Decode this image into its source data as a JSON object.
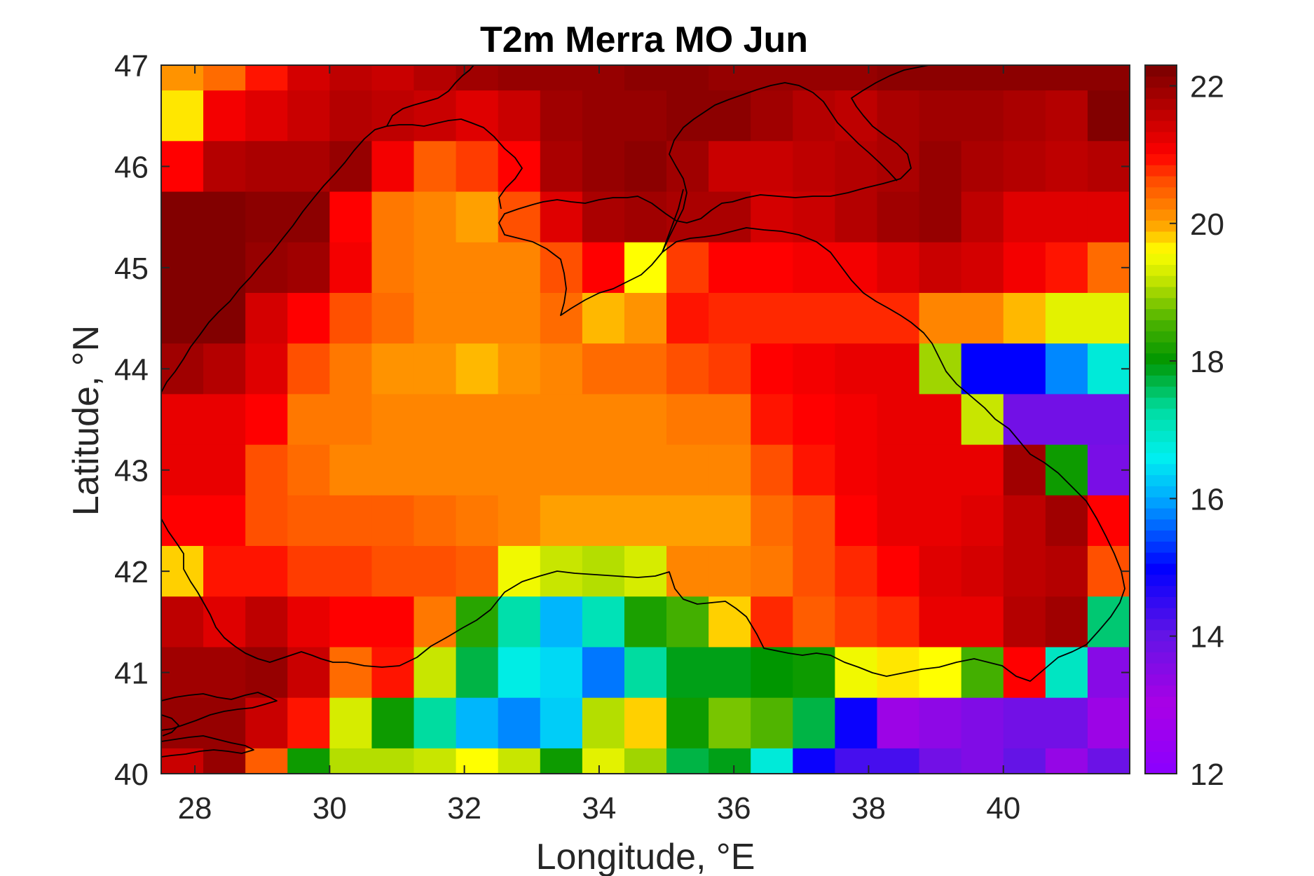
{
  "chart_data": {
    "type": "heatmap",
    "title": "T2m Merra MO Jun",
    "xlabel": "Longitude, °E",
    "ylabel": "Latitude, °N",
    "xlim": [
      27.5,
      41.875
    ],
    "ylim": [
      40,
      47
    ],
    "xticks": [
      28,
      30,
      32,
      34,
      36,
      38,
      40
    ],
    "yticks": [
      40,
      41,
      42,
      43,
      44,
      45,
      46,
      47
    ],
    "colorbar": {
      "range": [
        12,
        22.3
      ],
      "ticks": [
        12,
        14,
        16,
        18,
        20,
        22
      ],
      "colormap": "jet-like with purple low end and dark red high end"
    },
    "grid": "off",
    "legend": "colorbar right",
    "cell_lon_step": 0.625,
    "cell_lat_step": 0.5,
    "lon_start": 27.5,
    "lat_top": 47,
    "first_row_height_deg": 0.25,
    "rows_north_to_south": [
      [
        20.1,
        20.4,
        20.9,
        21.4,
        21.6,
        21.5,
        21.7,
        21.9,
        22.0,
        22.0,
        22.0,
        22.1,
        22.1,
        22.0,
        22.0,
        22.0,
        22.0,
        22.1,
        22.1,
        22.1,
        22.1,
        22.1,
        22.1
      ],
      [
        19.7,
        21.1,
        21.3,
        21.5,
        21.7,
        21.6,
        21.5,
        21.3,
        21.5,
        21.9,
        22.0,
        22.0,
        22.1,
        22.1,
        21.9,
        21.7,
        21.6,
        21.8,
        21.9,
        21.9,
        21.8,
        21.7,
        22.2
      ],
      [
        21.0,
        21.7,
        21.8,
        21.8,
        22.0,
        21.1,
        20.5,
        20.7,
        21.0,
        21.8,
        22.0,
        22.1,
        21.9,
        21.5,
        21.5,
        21.6,
        21.7,
        21.8,
        22.0,
        21.8,
        21.7,
        21.6,
        21.7
      ],
      [
        22.2,
        22.2,
        22.1,
        22.1,
        21.0,
        20.3,
        20.2,
        20.0,
        20.6,
        21.3,
        21.8,
        21.9,
        21.8,
        21.8,
        21.4,
        21.5,
        21.7,
        21.9,
        22.0,
        21.6,
        21.3,
        21.3,
        21.3
      ],
      [
        22.2,
        22.2,
        22.0,
        21.9,
        21.1,
        20.3,
        20.2,
        20.2,
        20.2,
        20.6,
        21.0,
        19.6,
        20.7,
        21.0,
        21.0,
        21.1,
        21.1,
        21.3,
        21.5,
        21.4,
        21.1,
        20.9,
        20.4
      ],
      [
        22.2,
        22.2,
        21.4,
        21.0,
        20.6,
        20.4,
        20.2,
        20.2,
        20.2,
        20.4,
        19.9,
        20.1,
        20.9,
        20.8,
        20.8,
        20.8,
        20.8,
        20.8,
        20.2,
        20.2,
        19.9,
        19.4,
        19.4
      ],
      [
        21.9,
        21.7,
        21.3,
        20.6,
        20.3,
        20.1,
        20.1,
        19.9,
        20.1,
        20.2,
        20.4,
        20.4,
        20.6,
        20.7,
        21.0,
        21.1,
        21.2,
        21.2,
        19.0,
        15.0,
        15.0,
        15.8,
        16.8
      ],
      [
        21.2,
        21.2,
        21.0,
        20.3,
        20.3,
        20.2,
        20.2,
        20.2,
        20.2,
        20.2,
        20.2,
        20.2,
        20.3,
        20.3,
        20.9,
        21.0,
        21.1,
        21.2,
        21.2,
        19.2,
        13.8,
        13.8,
        13.8
      ],
      [
        21.2,
        21.2,
        20.6,
        20.4,
        20.2,
        20.2,
        20.2,
        20.2,
        20.2,
        20.2,
        20.2,
        20.2,
        20.2,
        20.2,
        20.6,
        20.9,
        21.1,
        21.2,
        21.2,
        21.2,
        21.9,
        18.1,
        13.7
      ],
      [
        21.0,
        21.0,
        20.6,
        20.5,
        20.5,
        20.5,
        20.4,
        20.3,
        20.2,
        20.0,
        20.0,
        20.0,
        20.0,
        20.0,
        20.4,
        20.6,
        21.0,
        21.2,
        21.2,
        21.3,
        21.6,
        21.9,
        21.0
      ],
      [
        19.8,
        20.9,
        20.9,
        20.7,
        20.7,
        20.6,
        20.6,
        20.5,
        19.5,
        19.2,
        19.1,
        19.3,
        20.2,
        20.2,
        20.3,
        20.6,
        20.8,
        21.0,
        21.3,
        21.4,
        21.6,
        21.7,
        20.6
      ],
      [
        21.6,
        21.3,
        21.6,
        21.2,
        21.0,
        21.0,
        20.3,
        18.3,
        17.2,
        16.1,
        17.1,
        18.2,
        18.5,
        19.8,
        20.8,
        20.5,
        20.7,
        20.8,
        21.2,
        21.2,
        21.7,
        21.9,
        17.5
      ],
      [
        21.9,
        21.9,
        22.0,
        21.5,
        20.4,
        20.9,
        19.2,
        17.7,
        16.7,
        16.4,
        15.7,
        17.3,
        17.9,
        17.9,
        18.0,
        18.1,
        19.5,
        19.7,
        19.6,
        18.5,
        21.0,
        17.0,
        13.5
      ],
      [
        22.0,
        22.0,
        21.5,
        20.9,
        19.3,
        18.1,
        17.3,
        16.1,
        15.8,
        16.3,
        19.1,
        19.8,
        18.1,
        18.8,
        18.6,
        17.7,
        14.9,
        13.2,
        13.4,
        13.6,
        13.8,
        13.8,
        13.2
      ],
      [
        21.5,
        22.0,
        20.5,
        18.1,
        19.1,
        19.1,
        19.2,
        19.6,
        19.2,
        18.1,
        19.4,
        19.0,
        17.7,
        17.9,
        16.8,
        14.9,
        14.3,
        14.3,
        13.8,
        13.6,
        14.0,
        13.3,
        13.9
      ]
    ]
  }
}
